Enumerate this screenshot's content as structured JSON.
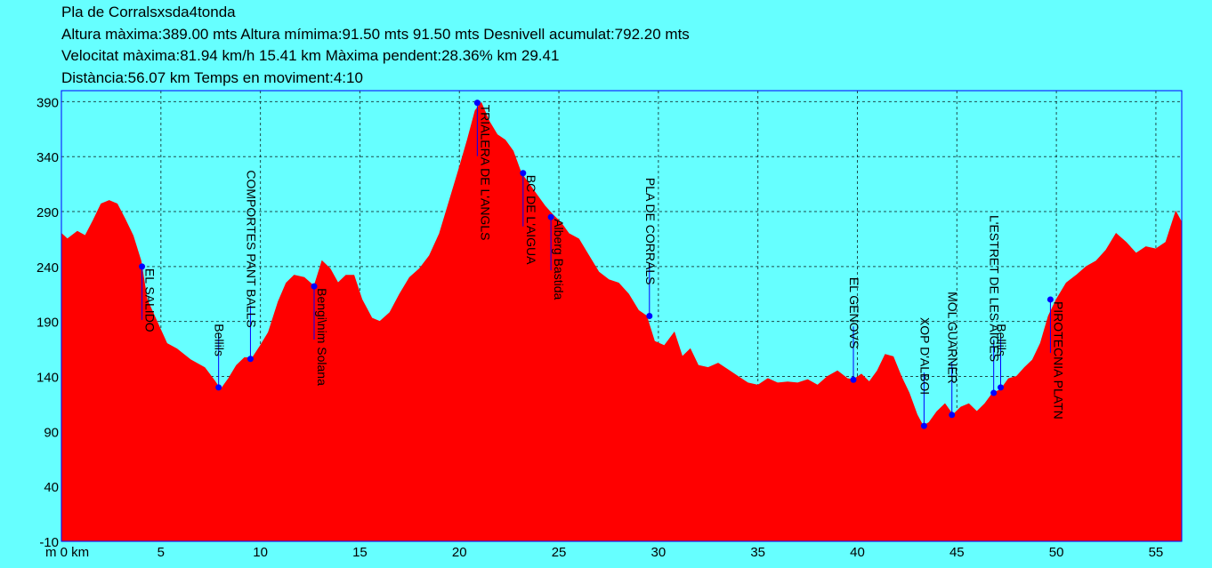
{
  "header": {
    "title": "Pla de Corralsxsda4tonda",
    "line2": "Altura màxima:389.00 mts Altura mímima:91.50 mts 91.50 mts Desnivell acumulat:792.20 mts",
    "line3": "Velocitat màxima:81.94 km/h 15.41 km Màxima pendent:28.36% km 29.41",
    "line4": "Distància:56.07 km Temps en moviment:4:10"
  },
  "colors": {
    "background": "#66ffff",
    "fill": "#ff0000",
    "marker": "#0000ff",
    "grid": "#000000",
    "frame": "#0000ff"
  },
  "chart_data": {
    "type": "area",
    "xlabel": "m 0 km",
    "ylabel": "",
    "xlim": [
      0,
      56.3
    ],
    "ylim": [
      -10,
      400
    ],
    "x_ticks": [
      5,
      10,
      15,
      20,
      25,
      30,
      35,
      40,
      45,
      50,
      55
    ],
    "y_ticks": [
      -10,
      40,
      90,
      140,
      190,
      240,
      290,
      340,
      390
    ],
    "grid": true,
    "profile": [
      [
        0,
        270
      ],
      [
        0.3,
        265
      ],
      [
        0.8,
        272
      ],
      [
        1.2,
        268
      ],
      [
        1.6,
        282
      ],
      [
        2.0,
        297
      ],
      [
        2.4,
        300
      ],
      [
        2.8,
        297
      ],
      [
        3.2,
        283
      ],
      [
        3.6,
        268
      ],
      [
        4.0,
        245
      ],
      [
        4.3,
        210
      ],
      [
        4.8,
        190
      ],
      [
        5.3,
        170
      ],
      [
        5.8,
        165
      ],
      [
        6.5,
        155
      ],
      [
        7.2,
        148
      ],
      [
        7.7,
        136
      ],
      [
        8.0,
        128
      ],
      [
        8.4,
        138
      ],
      [
        8.8,
        150
      ],
      [
        9.2,
        157
      ],
      [
        9.6,
        157
      ],
      [
        10.0,
        168
      ],
      [
        10.4,
        180
      ],
      [
        10.9,
        208
      ],
      [
        11.3,
        225
      ],
      [
        11.7,
        232
      ],
      [
        12.2,
        230
      ],
      [
        12.7,
        222
      ],
      [
        13.1,
        245
      ],
      [
        13.5,
        238
      ],
      [
        13.9,
        225
      ],
      [
        14.3,
        232
      ],
      [
        14.7,
        232
      ],
      [
        15.1,
        210
      ],
      [
        15.6,
        193
      ],
      [
        16.0,
        190
      ],
      [
        16.5,
        198
      ],
      [
        17.0,
        215
      ],
      [
        17.5,
        230
      ],
      [
        18.0,
        238
      ],
      [
        18.5,
        250
      ],
      [
        19.0,
        270
      ],
      [
        19.5,
        300
      ],
      [
        20.0,
        330
      ],
      [
        20.4,
        355
      ],
      [
        20.8,
        382
      ],
      [
        21.1,
        389
      ],
      [
        21.5,
        372
      ],
      [
        21.9,
        360
      ],
      [
        22.3,
        355
      ],
      [
        22.7,
        345
      ],
      [
        23.1,
        325
      ],
      [
        23.5,
        315
      ],
      [
        23.9,
        305
      ],
      [
        24.3,
        295
      ],
      [
        24.7,
        287
      ],
      [
        25.1,
        280
      ],
      [
        25.5,
        270
      ],
      [
        26.0,
        265
      ],
      [
        26.5,
        250
      ],
      [
        27.0,
        235
      ],
      [
        27.5,
        228
      ],
      [
        28.0,
        225
      ],
      [
        28.5,
        215
      ],
      [
        29.0,
        200
      ],
      [
        29.4,
        195
      ],
      [
        29.8,
        172
      ],
      [
        30.3,
        168
      ],
      [
        30.8,
        180
      ],
      [
        31.2,
        158
      ],
      [
        31.6,
        165
      ],
      [
        32.0,
        150
      ],
      [
        32.5,
        148
      ],
      [
        33.0,
        152
      ],
      [
        33.5,
        146
      ],
      [
        34.0,
        140
      ],
      [
        34.5,
        134
      ],
      [
        35.0,
        132
      ],
      [
        35.5,
        138
      ],
      [
        36.0,
        134
      ],
      [
        36.5,
        135
      ],
      [
        37.0,
        134
      ],
      [
        37.5,
        137
      ],
      [
        38.0,
        132
      ],
      [
        38.5,
        140
      ],
      [
        39.0,
        145
      ],
      [
        39.5,
        138
      ],
      [
        39.8,
        137
      ],
      [
        40.2,
        142
      ],
      [
        40.6,
        135
      ],
      [
        41.0,
        145
      ],
      [
        41.4,
        160
      ],
      [
        41.8,
        158
      ],
      [
        42.2,
        140
      ],
      [
        42.6,
        125
      ],
      [
        43.0,
        105
      ],
      [
        43.3,
        95
      ],
      [
        43.6,
        98
      ],
      [
        44.0,
        108
      ],
      [
        44.4,
        115
      ],
      [
        44.8,
        105
      ],
      [
        45.2,
        112
      ],
      [
        45.6,
        115
      ],
      [
        46.0,
        108
      ],
      [
        46.4,
        115
      ],
      [
        46.8,
        125
      ],
      [
        47.2,
        128
      ],
      [
        47.6,
        138
      ],
      [
        48.0,
        140
      ],
      [
        48.4,
        148
      ],
      [
        48.8,
        155
      ],
      [
        49.2,
        170
      ],
      [
        49.6,
        195
      ],
      [
        50.0,
        210
      ],
      [
        50.5,
        225
      ],
      [
        51.0,
        232
      ],
      [
        51.5,
        240
      ],
      [
        52.0,
        245
      ],
      [
        52.5,
        255
      ],
      [
        53.0,
        270
      ],
      [
        53.5,
        262
      ],
      [
        54.0,
        252
      ],
      [
        54.5,
        258
      ],
      [
        55.0,
        256
      ],
      [
        55.5,
        262
      ],
      [
        56.0,
        290
      ],
      [
        56.3,
        280
      ]
    ],
    "waypoints": [
      {
        "x": 4.05,
        "y": 240,
        "label": "EL SALIDO",
        "dir": "down"
      },
      {
        "x": 7.9,
        "y": 130,
        "label": "Bellils",
        "dir": "up"
      },
      {
        "x": 9.5,
        "y": 156,
        "label": "COMPORTES PANT BALLS",
        "dir": "up"
      },
      {
        "x": 12.7,
        "y": 222,
        "label": "Bengi\\nim Solana",
        "dir": "down"
      },
      {
        "x": 20.9,
        "y": 389,
        "label": "TRIALERA DE L'ANGLS",
        "dir": "down"
      },
      {
        "x": 23.2,
        "y": 325,
        "label": "BC DE L'AIGUA",
        "dir": "down"
      },
      {
        "x": 24.6,
        "y": 285,
        "label": "Alberg Bastida",
        "dir": "down"
      },
      {
        "x": 29.55,
        "y": 195,
        "label": "PLA DE CORRALS",
        "dir": "up"
      },
      {
        "x": 39.8,
        "y": 137,
        "label": "EL GENOVS",
        "dir": "up"
      },
      {
        "x": 43.35,
        "y": 95,
        "label": "XOP D'ALBOI",
        "dir": "up"
      },
      {
        "x": 44.75,
        "y": 105,
        "label": "MOL GUARNER",
        "dir": "up"
      },
      {
        "x": 46.85,
        "y": 125,
        "label": "L'ESTRET DE LES AIGES",
        "dir": "up"
      },
      {
        "x": 47.2,
        "y": 130,
        "label": "Bellils",
        "dir": "up"
      },
      {
        "x": 49.7,
        "y": 210,
        "label": "PIROTECNIA PLATN",
        "dir": "down"
      }
    ]
  }
}
